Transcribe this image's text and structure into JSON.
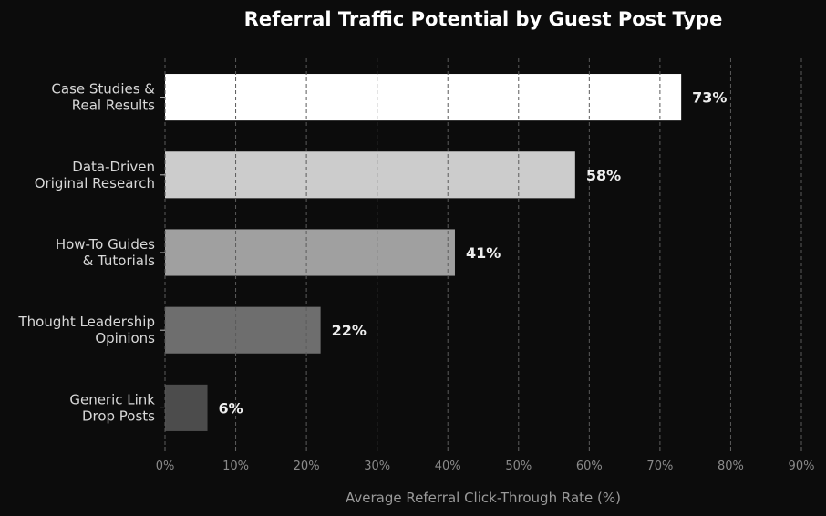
{
  "chart_data": {
    "type": "bar",
    "orientation": "horizontal",
    "title": "Referral Traffic Potential by Guest Post Type",
    "xlabel": "Average Referral Click-Through Rate (%)",
    "ylabel": "",
    "xlim": [
      0,
      90
    ],
    "ticks": [
      0,
      10,
      20,
      30,
      40,
      50,
      60,
      70,
      80,
      90
    ],
    "tick_labels": [
      "0%",
      "10%",
      "20%",
      "30%",
      "40%",
      "50%",
      "60%",
      "70%",
      "80%",
      "90%"
    ],
    "grid": "vertical-dashed",
    "categories": [
      [
        "Case Studies &",
        "Real Results"
      ],
      [
        "Data-Driven",
        "Original Research"
      ],
      [
        "How-To Guides",
        "& Tutorials"
      ],
      [
        "Thought Leadership",
        "Opinions"
      ],
      [
        "Generic Link",
        "Drop Posts"
      ]
    ],
    "values": [
      73,
      58,
      41,
      22,
      6
    ],
    "value_labels": [
      "73%",
      "58%",
      "41%",
      "22%",
      "6%"
    ],
    "colors": [
      "#ffffff",
      "#cccccc",
      "#a0a0a0",
      "#6e6e6e",
      "#4c4c4c"
    ]
  }
}
